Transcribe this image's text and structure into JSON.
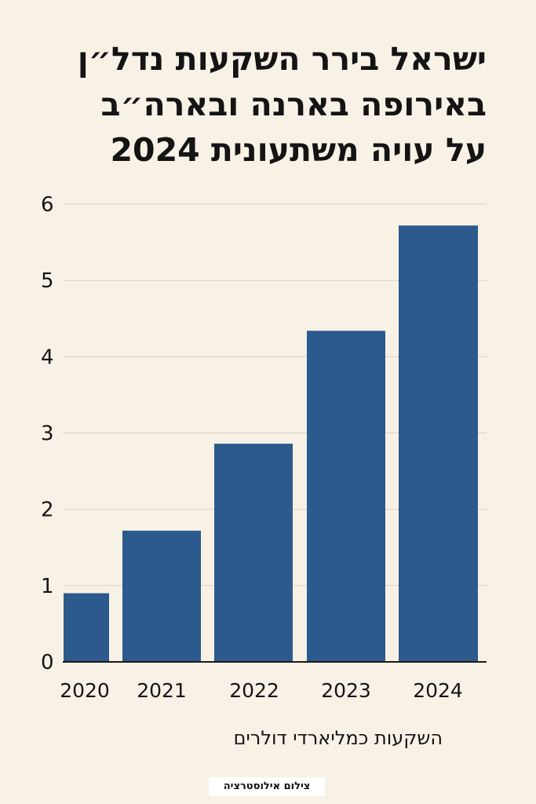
{
  "title_lines": [
    "ישראל בירר השקעות נדל״ן",
    "באירופה בארנה ובארה״ב",
    "על עויה משתעונית 2024"
  ],
  "credit": "צילום אילוסטרציה",
  "colors": {
    "bar": "#2c5a8c",
    "background": "#f8f2e6",
    "grid": "#ddd5c6",
    "text": "#141414"
  },
  "chart_data": {
    "type": "bar",
    "categories": [
      "2020",
      "2021",
      "2022",
      "2023",
      "2024"
    ],
    "values": [
      0.9,
      1.72,
      2.86,
      4.34,
      5.72
    ],
    "title": "ישראל בירר השקעות נדל״ן באירופה בארנה ובארה״ב על עויה משתעונית 2024",
    "xlabel": "השקעות כמליארדי דולרים",
    "ylabel": "",
    "ylim": [
      0,
      6
    ],
    "yticks": [
      0,
      1,
      2,
      3,
      4,
      5,
      6
    ],
    "grid": true
  }
}
